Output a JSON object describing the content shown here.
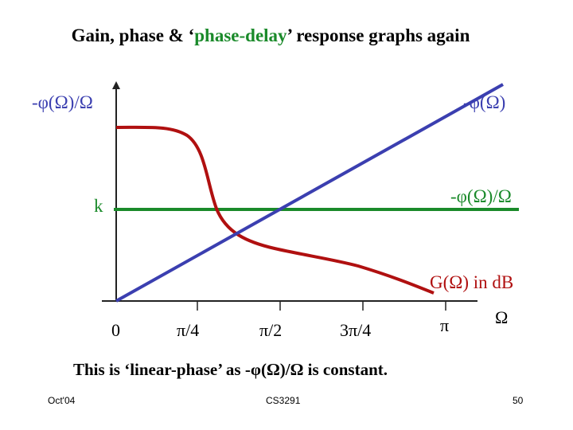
{
  "title_parts": [
    "Gain, phase & ‘",
    "phase-delay",
    "’ response graphs again"
  ],
  "labels": {
    "y_axis_top_left": "-φ(Ω)/Ω",
    "phase_line": "-φ(Ω)",
    "phase_delay_line": "-φ(Ω)/Ω",
    "k": "k",
    "gain_curve": "G(Ω) in dB",
    "x_axis_symbol": "Ω"
  },
  "x_ticks": [
    "0",
    "π/4",
    "π/2",
    "3π/4",
    "π"
  ],
  "caption": "This is ‘linear-phase’ as -φ(Ω)/Ω is constant.",
  "footer": {
    "left": "Oct'04",
    "center": "CS3291",
    "right": "50"
  },
  "colors": {
    "phase": "#3b3fb0",
    "delay": "#1a8a2a",
    "gain": "#b01010",
    "axis": "#222222"
  }
}
